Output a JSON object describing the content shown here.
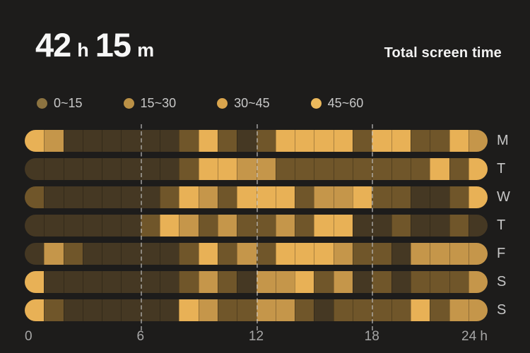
{
  "header": {
    "hours_value": "42",
    "hours_unit": "h",
    "minutes_value": "15",
    "minutes_unit": "m",
    "subtitle": "Total screen time"
  },
  "chart_data": {
    "type": "heatmap",
    "title": "Total screen time",
    "total_label": "42 h 15 m",
    "unit": "minutes of screen time per hour of day",
    "categories_y": [
      "M",
      "T",
      "W",
      "T",
      "F",
      "S",
      "S"
    ],
    "x_range_hours": [
      0,
      24
    ],
    "x_ticks": [
      {
        "hour": 0,
        "label": "0"
      },
      {
        "hour": 6,
        "label": "6"
      },
      {
        "hour": 12,
        "label": "12"
      },
      {
        "hour": 18,
        "label": "18"
      },
      {
        "hour": 24,
        "label": "24 h"
      }
    ],
    "gridlines_at_hours": [
      6,
      12,
      18
    ],
    "legend": [
      {
        "label": "0~15",
        "dot_color": "#8c7340",
        "cell_color": "#453823"
      },
      {
        "label": "15~30",
        "dot_color": "#bb9146",
        "cell_color": "#70562a"
      },
      {
        "label": "30~45",
        "dot_color": "#daa54d",
        "cell_color": "#c5964a"
      },
      {
        "label": "45~60",
        "dot_color": "#ecb95c",
        "cell_color": "#e8b156"
      }
    ],
    "values_level_index_per_hour": [
      [
        3,
        2,
        0,
        0,
        0,
        0,
        0,
        0,
        1,
        3,
        1,
        0,
        1,
        3,
        3,
        3,
        3,
        1,
        3,
        3,
        1,
        1,
        3,
        2
      ],
      [
        0,
        0,
        0,
        0,
        0,
        0,
        0,
        0,
        1,
        3,
        3,
        2,
        2,
        1,
        1,
        1,
        1,
        1,
        1,
        1,
        1,
        3,
        1,
        3
      ],
      [
        1,
        0,
        0,
        0,
        0,
        0,
        0,
        1,
        3,
        2,
        1,
        3,
        3,
        3,
        1,
        2,
        2,
        3,
        1,
        1,
        0,
        0,
        1,
        3
      ],
      [
        0,
        0,
        0,
        0,
        0,
        0,
        1,
        3,
        2,
        1,
        2,
        1,
        1,
        2,
        1,
        3,
        3,
        0,
        0,
        1,
        0,
        0,
        1,
        0
      ],
      [
        0,
        2,
        1,
        0,
        0,
        0,
        0,
        0,
        1,
        3,
        1,
        2,
        1,
        3,
        3,
        3,
        2,
        1,
        1,
        0,
        2,
        2,
        2,
        2
      ],
      [
        3,
        0,
        0,
        0,
        0,
        0,
        0,
        0,
        1,
        2,
        1,
        0,
        2,
        2,
        3,
        1,
        2,
        0,
        1,
        0,
        1,
        1,
        1,
        2
      ],
      [
        3,
        1,
        0,
        0,
        0,
        0,
        0,
        0,
        3,
        2,
        1,
        1,
        2,
        2,
        1,
        0,
        1,
        1,
        1,
        1,
        3,
        1,
        2,
        2
      ]
    ]
  }
}
